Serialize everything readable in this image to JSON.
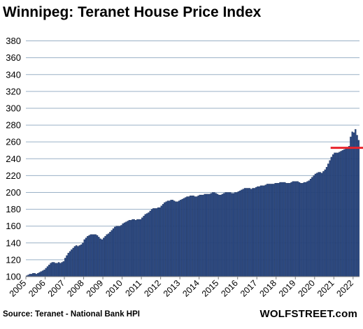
{
  "chart_data": {
    "type": "bar",
    "title": "Winnipeg: Teranet House Price Index",
    "source": "Source: Teranet - National Bank HPI",
    "brand": "WOLFSTREET.com",
    "colors": {
      "bar": "#2d4b86",
      "bar_edge": "#152a52",
      "grid": "#9ab0c6",
      "reference_line": "#e8242c"
    },
    "ylim": [
      100,
      390
    ],
    "yticks": [
      100,
      120,
      140,
      160,
      180,
      200,
      220,
      240,
      260,
      280,
      300,
      320,
      340,
      360,
      380
    ],
    "xticks": [
      "2005",
      "2006",
      "2007",
      "2008",
      "2009",
      "2010",
      "2011",
      "2012",
      "2013",
      "2014",
      "2015",
      "2016",
      "2017",
      "2018",
      "2019",
      "2020",
      "2021",
      "2022"
    ],
    "x_start": "2005-01",
    "frequency": "monthly",
    "reference_line": {
      "value": 253,
      "from": "2020-11",
      "to": "2022-10"
    },
    "grid": true,
    "values": [
      101,
      102,
      103,
      103,
      104,
      104,
      103,
      104,
      105,
      106,
      107,
      108,
      110,
      112,
      114,
      116,
      117,
      117,
      116,
      116,
      117,
      116,
      117,
      118,
      122,
      125,
      128,
      130,
      132,
      134,
      136,
      137,
      136,
      137,
      138,
      140,
      144,
      146,
      148,
      149,
      150,
      150,
      150,
      150,
      149,
      147,
      145,
      144,
      146,
      148,
      150,
      151,
      153,
      155,
      157,
      159,
      160,
      160,
      160,
      161,
      163,
      164,
      165,
      166,
      167,
      167,
      168,
      168,
      167,
      168,
      168,
      168,
      170,
      172,
      174,
      175,
      176,
      178,
      180,
      181,
      181,
      181,
      182,
      182,
      184,
      186,
      188,
      189,
      190,
      190,
      191,
      191,
      190,
      189,
      189,
      190,
      191,
      192,
      193,
      194,
      195,
      195,
      196,
      196,
      196,
      195,
      195,
      196,
      197,
      197,
      197,
      198,
      198,
      198,
      198,
      199,
      200,
      200,
      199,
      198,
      197,
      197,
      198,
      199,
      200,
      200,
      200,
      200,
      199,
      199,
      200,
      200,
      201,
      202,
      203,
      204,
      205,
      205,
      205,
      205,
      204,
      205,
      205,
      206,
      207,
      207,
      208,
      208,
      208,
      209,
      210,
      210,
      210,
      210,
      210,
      211,
      211,
      211,
      212,
      212,
      212,
      212,
      211,
      211,
      211,
      212,
      213,
      213,
      213,
      213,
      212,
      211,
      211,
      212,
      212,
      213,
      214,
      216,
      218,
      220,
      222,
      223,
      224,
      224,
      223,
      225,
      227,
      230,
      234,
      238,
      242,
      245,
      247,
      247,
      247,
      248,
      249,
      250,
      251,
      252,
      253,
      255,
      266,
      272,
      271,
      275,
      268,
      262
    ]
  }
}
